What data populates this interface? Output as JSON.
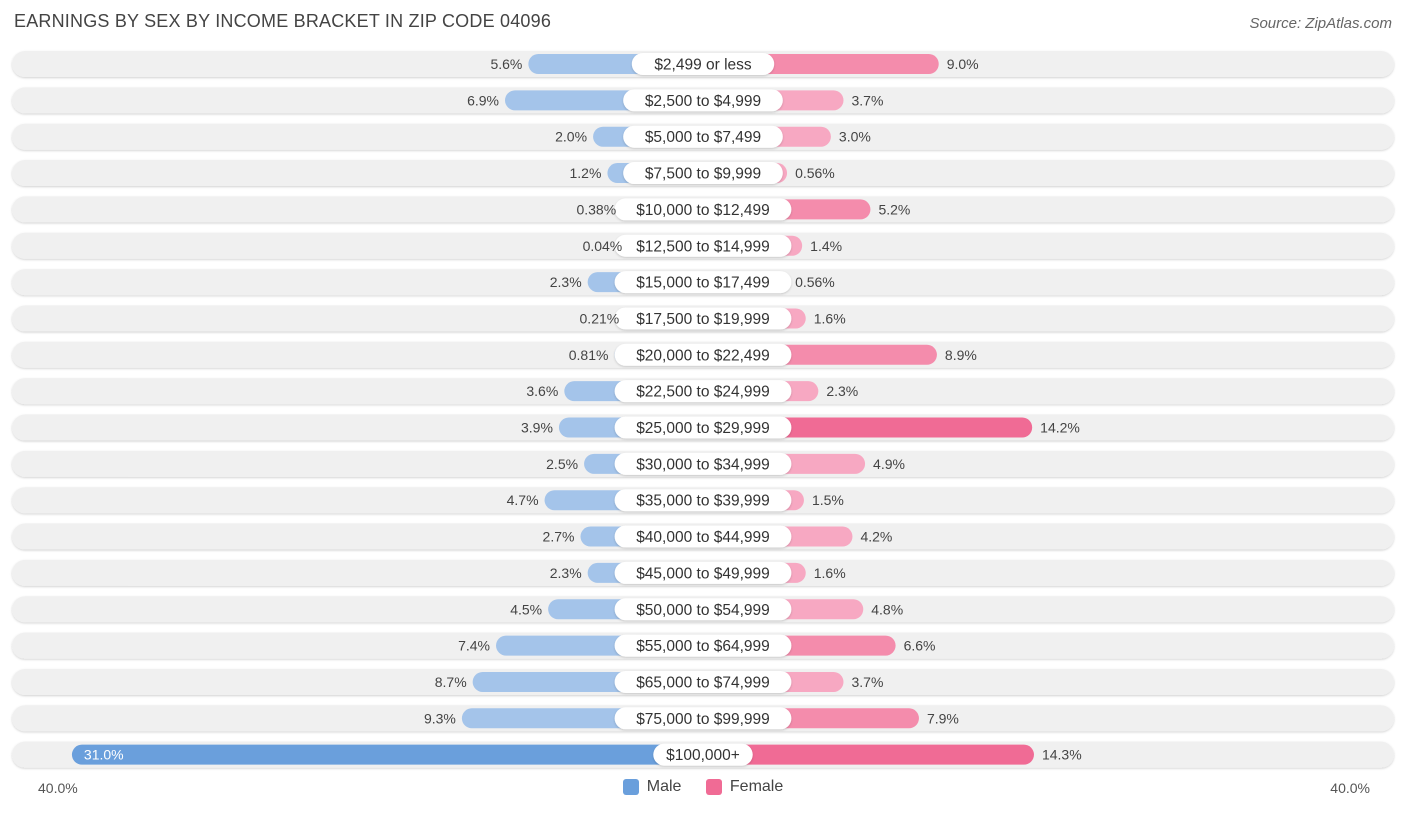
{
  "title": "EARNINGS BY SEX BY INCOME BRACKET IN ZIP CODE 04096",
  "source": "Source: ZipAtlas.com",
  "colors": {
    "male_light": "#a4c4ea",
    "male_dark": "#6a9fdc",
    "female_light": "#f7a8c2",
    "female_dark": "#f06b95",
    "row_bg": "#f0f0f0"
  },
  "legend": {
    "male": "Male",
    "female": "Female"
  },
  "axis": {
    "left_label": "40.0%",
    "right_label": "40.0%"
  },
  "chart_data": {
    "type": "bar",
    "orientation": "horizontal-diverging",
    "title": "EARNINGS BY SEX BY INCOME BRACKET IN ZIP CODE 04096",
    "xlim": [
      -40,
      40
    ],
    "categories": [
      "$2,499 or less",
      "$2,500 to $4,999",
      "$5,000 to $7,499",
      "$7,500 to $9,999",
      "$10,000 to $12,499",
      "$12,500 to $14,999",
      "$15,000 to $17,499",
      "$17,500 to $19,999",
      "$20,000 to $22,499",
      "$22,500 to $24,999",
      "$25,000 to $29,999",
      "$30,000 to $34,999",
      "$35,000 to $39,999",
      "$40,000 to $44,999",
      "$45,000 to $49,999",
      "$50,000 to $54,999",
      "$55,000 to $64,999",
      "$65,000 to $74,999",
      "$75,000 to $99,999",
      "$100,000+"
    ],
    "series": [
      {
        "name": "Male",
        "values": [
          5.6,
          6.9,
          2.0,
          1.2,
          0.38,
          0.04,
          2.3,
          0.21,
          0.81,
          3.6,
          3.9,
          2.5,
          4.7,
          2.7,
          2.3,
          4.5,
          7.4,
          8.7,
          9.3,
          31.0
        ],
        "labels": [
          "5.6%",
          "6.9%",
          "2.0%",
          "1.2%",
          "0.38%",
          "0.04%",
          "2.3%",
          "0.21%",
          "0.81%",
          "3.6%",
          "3.9%",
          "2.5%",
          "4.7%",
          "2.7%",
          "2.3%",
          "4.5%",
          "7.4%",
          "8.7%",
          "9.3%",
          "31.0%"
        ]
      },
      {
        "name": "Female",
        "values": [
          9.0,
          3.7,
          3.0,
          0.56,
          5.2,
          1.4,
          0.56,
          1.6,
          8.9,
          2.3,
          14.2,
          4.9,
          1.5,
          4.2,
          1.6,
          4.8,
          6.6,
          3.7,
          7.9,
          14.3
        ],
        "labels": [
          "9.0%",
          "3.7%",
          "3.0%",
          "0.56%",
          "5.2%",
          "1.4%",
          "0.56%",
          "1.6%",
          "8.9%",
          "2.3%",
          "14.2%",
          "4.9%",
          "1.5%",
          "4.2%",
          "1.6%",
          "4.8%",
          "6.6%",
          "3.7%",
          "7.9%",
          "14.3%"
        ]
      }
    ]
  }
}
